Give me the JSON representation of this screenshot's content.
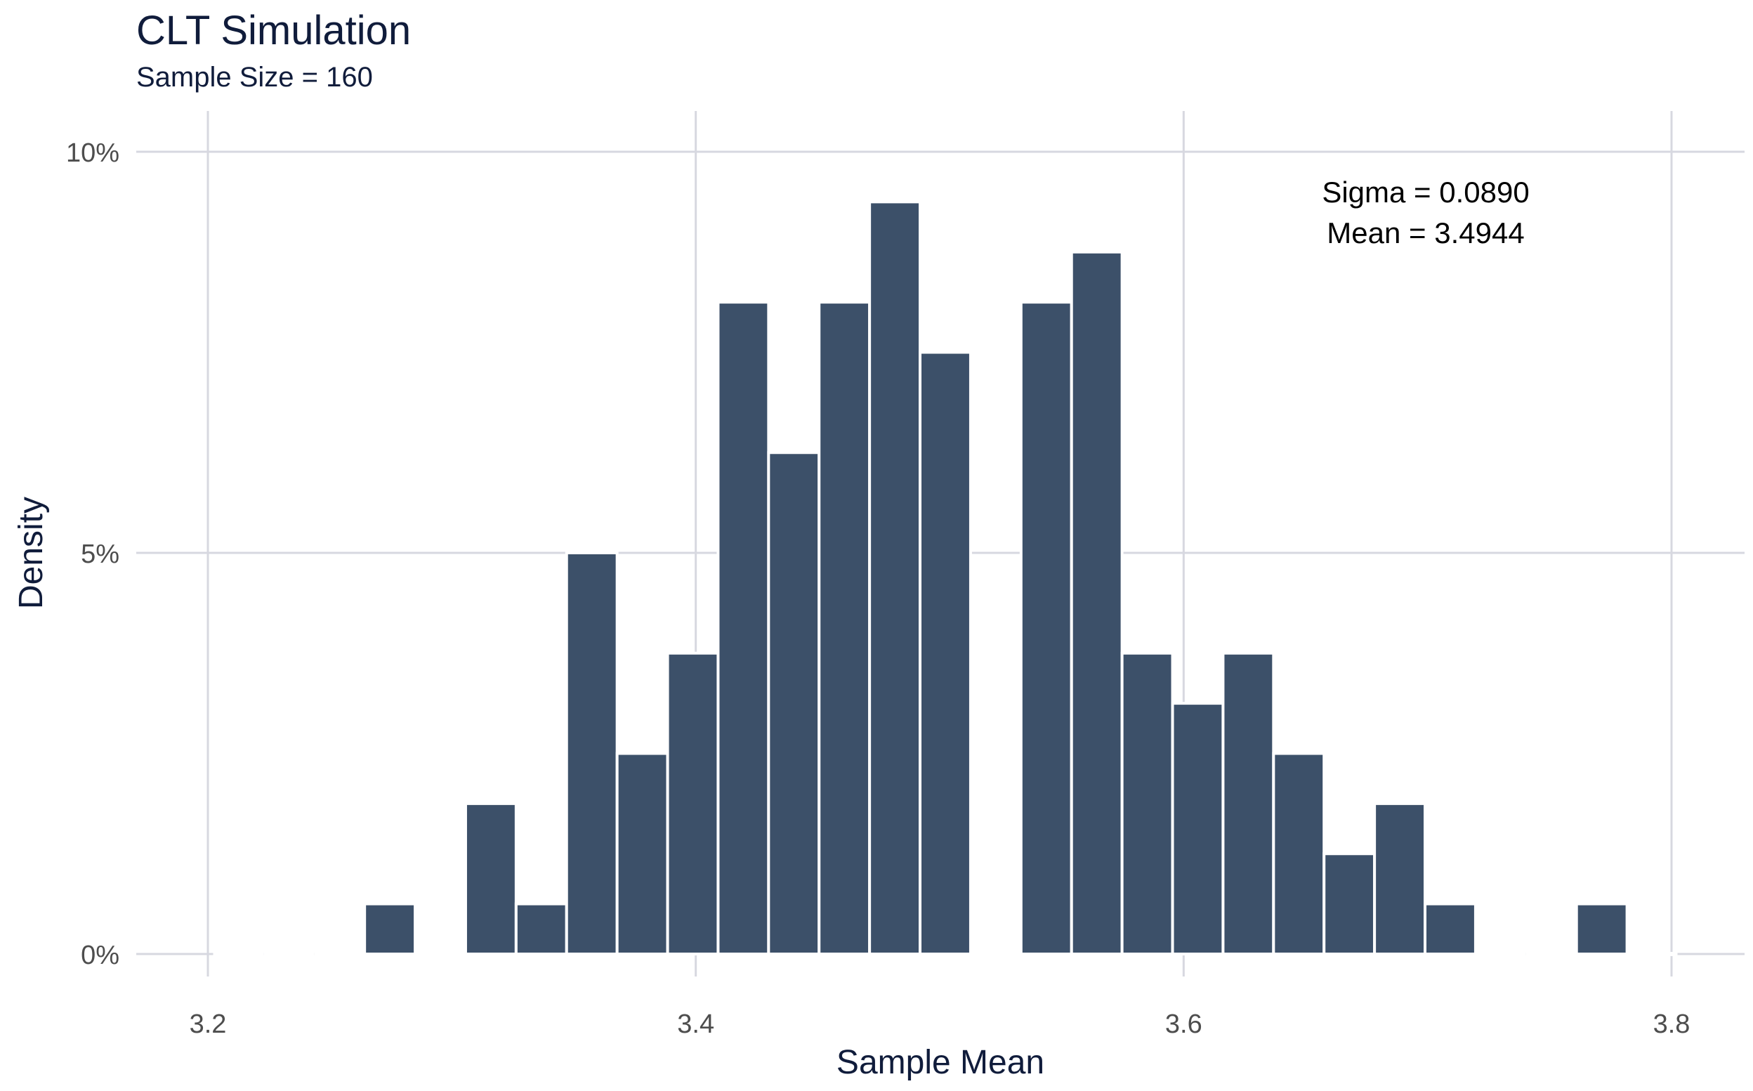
{
  "chart_data": {
    "type": "bar",
    "title": "CLT Simulation",
    "subtitle": "Sample Size = 160",
    "xlabel": "Sample Mean",
    "ylabel": "Density",
    "xlim": [
      3.185,
      3.815
    ],
    "ylim": [
      0,
      0.1
    ],
    "x_ticks": [
      {
        "value": 3.2,
        "label": "3.2"
      },
      {
        "value": 3.4,
        "label": "3.4"
      },
      {
        "value": 3.6,
        "label": "3.6"
      },
      {
        "value": 3.8,
        "label": "3.8"
      }
    ],
    "y_ticks": [
      {
        "value": 0,
        "label": "0%"
      },
      {
        "value": 0.05,
        "label": "5%"
      },
      {
        "value": 0.1,
        "label": "10%"
      }
    ],
    "grid": true,
    "bin_width": 0.0207,
    "bins": [
      {
        "x": 3.2125,
        "density": 0.0
      },
      {
        "x": 3.2332,
        "density": 0.0
      },
      {
        "x": 3.2539,
        "density": 0.0
      },
      {
        "x": 3.2746,
        "density": 0.00625
      },
      {
        "x": 3.2953,
        "density": 0.0
      },
      {
        "x": 3.316,
        "density": 0.01875
      },
      {
        "x": 3.3367,
        "density": 0.00625
      },
      {
        "x": 3.3574,
        "density": 0.05
      },
      {
        "x": 3.3781,
        "density": 0.025
      },
      {
        "x": 3.3988,
        "density": 0.0375
      },
      {
        "x": 3.4195,
        "density": 0.08125
      },
      {
        "x": 3.4402,
        "density": 0.0625
      },
      {
        "x": 3.4609,
        "density": 0.08125
      },
      {
        "x": 3.4816,
        "density": 0.09375
      },
      {
        "x": 3.5023,
        "density": 0.075
      },
      {
        "x": 3.523,
        "density": 0.0
      },
      {
        "x": 3.5437,
        "density": 0.08125
      },
      {
        "x": 3.5644,
        "density": 0.0875
      },
      {
        "x": 3.5851,
        "density": 0.0375
      },
      {
        "x": 3.6058,
        "density": 0.03125
      },
      {
        "x": 3.6265,
        "density": 0.0375
      },
      {
        "x": 3.6472,
        "density": 0.025
      },
      {
        "x": 3.6679,
        "density": 0.0125
      },
      {
        "x": 3.6886,
        "density": 0.01875
      },
      {
        "x": 3.7093,
        "density": 0.00625
      },
      {
        "x": 3.73,
        "density": 0.0
      },
      {
        "x": 3.7507,
        "density": 0.0
      },
      {
        "x": 3.7714,
        "density": 0.00625
      },
      {
        "x": 3.7921,
        "density": 0.0
      }
    ],
    "annotations": [
      {
        "text": "Sigma =  0.0890",
        "x": 3.7,
        "y": 0.095
      },
      {
        "text": "Mean =  3.4944",
        "x": 3.7,
        "y": 0.09
      }
    ]
  },
  "colors": {
    "bar_fill": "#3c5069",
    "bar_outline": "#ffffff",
    "grid": "#d7d8e0",
    "title_text": "#101c3b",
    "axis_text": "#4d4d4d",
    "annotation_text": "#000000"
  }
}
